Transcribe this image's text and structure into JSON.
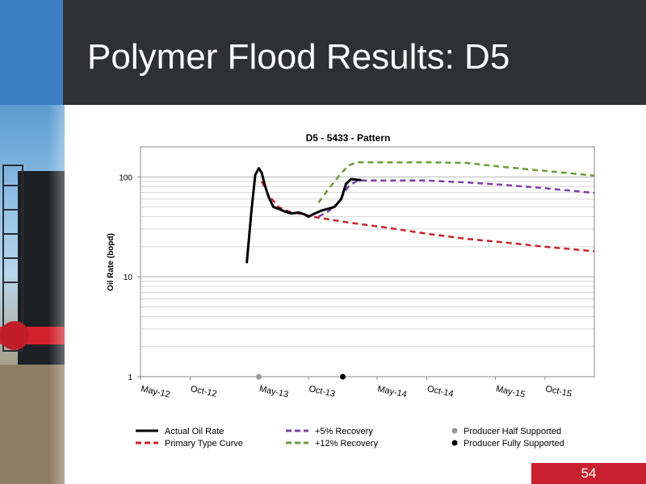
{
  "slide": {
    "title": "Polymer Flood Results: D5",
    "page_number": "54"
  },
  "colors": {
    "header_bg": "#2f3033",
    "accent_blue": "#3a7ebf",
    "badge_red": "#c8202f",
    "actual": "#000000",
    "primary": "#c8242b",
    "plus5": "#7f3fa8",
    "plus12": "#6f9a37",
    "half_supported": "#9a9a9a",
    "fully_supported": "#000000"
  },
  "chart_data": {
    "type": "line",
    "title": "D5 - 5433 - Pattern",
    "xlabel": "",
    "ylabel": "Oil Rate (bopd)",
    "y_scale": "log",
    "ylim": [
      1,
      200
    ],
    "y_ticks": [
      "1",
      "10",
      "100"
    ],
    "xlim": [
      "2012-05-01",
      "2016-03-01"
    ],
    "x_ticks": [
      "May-12",
      "Oct-12",
      "May-13",
      "Oct-13",
      "May-14",
      "Oct-14",
      "May-15",
      "Oct-15"
    ],
    "x_tick_dates": [
      "2012-05-01",
      "2012-10-01",
      "2013-05-01",
      "2013-10-01",
      "2014-05-01",
      "2014-10-01",
      "2015-05-01",
      "2015-10-01"
    ],
    "grid": "horizontal",
    "legend_position": "bottom",
    "series": [
      {
        "name": "Actual Oil Rate",
        "style": "solid",
        "color": "#000000",
        "x": [
          "2013-03-25",
          "2013-04-08",
          "2013-04-20",
          "2013-05-01",
          "2013-05-10",
          "2013-05-20",
          "2013-06-01",
          "2013-06-15",
          "2013-07-01",
          "2013-07-20",
          "2013-08-10",
          "2013-09-01",
          "2013-09-20",
          "2013-10-01",
          "2013-10-20",
          "2013-11-10",
          "2013-12-01",
          "2013-12-20",
          "2014-01-10",
          "2014-01-25",
          "2014-02-10",
          "2014-02-25",
          "2014-03-10"
        ],
        "y": [
          14,
          45,
          105,
          122,
          110,
          82,
          62,
          50,
          48,
          45,
          43,
          44,
          42,
          40,
          43,
          46,
          48,
          50,
          60,
          85,
          95,
          94,
          93
        ]
      },
      {
        "name": "Primary Type Curve",
        "style": "dashed",
        "color": "#c8242b",
        "x": [
          "2013-05-10",
          "2013-06-01",
          "2013-07-01",
          "2013-08-01",
          "2013-09-01",
          "2013-10-01",
          "2013-11-01",
          "2014-02-01",
          "2014-06-01",
          "2014-10-01",
          "2015-02-01",
          "2015-06-01",
          "2015-10-01",
          "2016-03-01"
        ],
        "y": [
          90,
          65,
          50,
          45,
          43,
          41,
          39,
          35,
          31,
          27,
          24,
          22,
          20,
          18
        ]
      },
      {
        "name": "+5% Recovery",
        "style": "dashed",
        "color": "#7f3fa8",
        "x": [
          "2013-11-01",
          "2013-12-01",
          "2014-01-01",
          "2014-02-01",
          "2014-03-01",
          "2014-06-01",
          "2014-10-01",
          "2015-02-01",
          "2015-06-01",
          "2015-10-01",
          "2016-03-01"
        ],
        "y": [
          40,
          45,
          55,
          80,
          92,
          92,
          92,
          88,
          83,
          77,
          69
        ]
      },
      {
        "name": "+12% Recovery",
        "style": "dashed",
        "color": "#6f9a37",
        "x": [
          "2013-11-01",
          "2013-12-01",
          "2014-01-01",
          "2014-02-01",
          "2014-03-01",
          "2014-06-01",
          "2014-10-01",
          "2015-02-01",
          "2015-06-01",
          "2015-10-01",
          "2016-03-01"
        ],
        "y": [
          55,
          75,
          100,
          130,
          140,
          140,
          140,
          138,
          125,
          115,
          103
        ]
      }
    ],
    "markers": [
      {
        "name": "Producer Half Supported",
        "color": "#9a9a9a",
        "x": "2013-05-01",
        "y": 1
      },
      {
        "name": "Producer Fully Supported",
        "color": "#000000",
        "x": "2014-01-15",
        "y": 1
      }
    ]
  }
}
